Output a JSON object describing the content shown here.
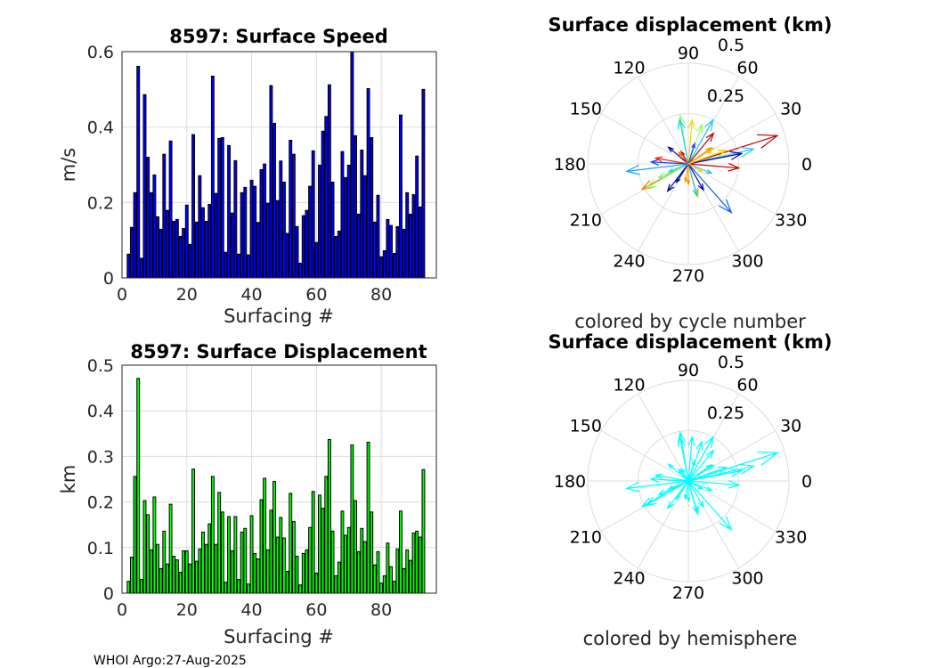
{
  "chart_data": [
    {
      "type": "bar",
      "title": "8597: Surface Speed",
      "xlabel": "Surfacing #",
      "ylabel": "m/s",
      "xlim": [
        0,
        97
      ],
      "ylim": [
        0,
        0.6
      ],
      "xticks": [
        "0",
        "20",
        "40",
        "60",
        "80"
      ],
      "yticks": [
        "0",
        "0.2",
        "0.4",
        "0.6"
      ],
      "bar_color": "#0000ff",
      "x_start": 2,
      "values": [
        0.063,
        0.134,
        0.226,
        0.561,
        0.052,
        0.486,
        0.32,
        0.226,
        0.273,
        0.162,
        0.129,
        0.328,
        0.179,
        0.363,
        0.15,
        0.155,
        0.11,
        0.131,
        0.193,
        0.089,
        0.38,
        0.148,
        0.271,
        0.186,
        0.15,
        0.195,
        0.535,
        0.224,
        0.37,
        0.372,
        0.068,
        0.351,
        0.172,
        0.311,
        0.063,
        0.226,
        0.24,
        0.061,
        0.259,
        0.243,
        0.147,
        0.287,
        0.302,
        0.198,
        0.51,
        0.41,
        0.205,
        0.31,
        0.254,
        0.118,
        0.365,
        0.328,
        0.136,
        0.039,
        0.165,
        0.179,
        0.243,
        0.337,
        0.094,
        0.299,
        0.389,
        0.428,
        0.512,
        0.254,
        0.11,
        0.124,
        0.335,
        0.266,
        0.299,
        0.603,
        0.377,
        0.169,
        0.339,
        0.271,
        0.502,
        0.372,
        0.148,
        0.219,
        0.056,
        0.072,
        0.155,
        0.139,
        0.065,
        0.136,
        0.432,
        0.129,
        0.226,
        0.169,
        0.221,
        0.323,
        0.188,
        0.5
      ]
    },
    {
      "type": "bar",
      "title": "8597: Surface Displacement",
      "xlabel": "Surfacing #",
      "ylabel": "km",
      "xlim": [
        0,
        97
      ],
      "ylim": [
        0,
        0.5
      ],
      "xticks": [
        "0",
        "20",
        "40",
        "60",
        "80"
      ],
      "yticks": [
        "0",
        "0.1",
        "0.2",
        "0.3",
        "0.4",
        "0.5"
      ],
      "bar_color": "#00ff00",
      "x_start": 2,
      "values": [
        0.026,
        0.079,
        0.256,
        0.471,
        0.03,
        0.203,
        0.172,
        0.095,
        0.211,
        0.107,
        0.054,
        0.136,
        0.064,
        0.195,
        0.081,
        0.073,
        0.046,
        0.093,
        0.093,
        0.064,
        0.272,
        0.07,
        0.097,
        0.134,
        0.107,
        0.152,
        0.256,
        0.107,
        0.221,
        0.178,
        0.024,
        0.168,
        0.093,
        0.168,
        0.03,
        0.134,
        0.142,
        0.02,
        0.17,
        0.087,
        0.075,
        0.205,
        0.252,
        0.095,
        0.182,
        0.245,
        0.123,
        0.166,
        0.121,
        0.048,
        0.219,
        0.157,
        0.081,
        0.018,
        0.087,
        0.095,
        0.144,
        0.223,
        0.044,
        0.215,
        0.186,
        0.256,
        0.337,
        0.136,
        0.038,
        0.068,
        0.18,
        0.127,
        0.144,
        0.325,
        0.203,
        0.091,
        0.142,
        0.113,
        0.331,
        0.178,
        0.062,
        0.091,
        0.022,
        0.038,
        0.11,
        0.058,
        0.026,
        0.097,
        0.18,
        0.054,
        0.095,
        0.072,
        0.132,
        0.136,
        0.123,
        0.271
      ]
    },
    {
      "type": "polar",
      "title": "Surface displacement (km)",
      "caption": "colored by cycle number",
      "rticks": [
        "0.25",
        "0.5"
      ],
      "angle_ticks": [
        "0",
        "30",
        "60",
        "90",
        "120",
        "150",
        "180",
        "210",
        "240",
        "270",
        "300",
        "330"
      ],
      "rlim": [
        0,
        0.5
      ],
      "arrows": [
        {
          "r": 0.464,
          "deg": 17.6,
          "color": "#c00000"
        },
        {
          "r": 0.252,
          "deg": -4.7,
          "color": "#c00000"
        },
        {
          "r": 0.333,
          "deg": 12.8,
          "color": "#20d0f0"
        },
        {
          "r": 0.27,
          "deg": 11,
          "color": "#0000a0"
        },
        {
          "r": 0.323,
          "deg": -48.5,
          "color": "#1060ff"
        },
        {
          "r": 0.309,
          "deg": 186.9,
          "color": "#20a0ff"
        },
        {
          "r": 0.185,
          "deg": 177,
          "color": "#1040ff"
        },
        {
          "r": 0.261,
          "deg": 208.7,
          "color": "#ff7000"
        },
        {
          "r": 0.24,
          "deg": 210,
          "color": "#90ff70"
        },
        {
          "r": 0.17,
          "deg": 232.7,
          "color": "#0000a0"
        },
        {
          "r": 0.129,
          "deg": 140,
          "color": "#0000a0"
        },
        {
          "r": 0.25,
          "deg": 60.7,
          "color": "#20c8f0"
        },
        {
          "r": 0.197,
          "deg": 50.5,
          "color": "#c00000"
        },
        {
          "r": 0.244,
          "deg": 99.7,
          "color": "#90ff70"
        },
        {
          "r": 0.223,
          "deg": 101,
          "color": "#20d0f0"
        },
        {
          "r": 0.219,
          "deg": 85,
          "color": "#ffd000"
        },
        {
          "r": 0.207,
          "deg": 71,
          "color": "#90ff70"
        },
        {
          "r": 0.172,
          "deg": -74,
          "color": "#ffd000"
        },
        {
          "r": 0.163,
          "deg": -75,
          "color": "#20c0f0"
        },
        {
          "r": 0.1,
          "deg": -90,
          "color": "#ff9000"
        },
        {
          "r": 0.165,
          "deg": 170,
          "color": "#ff2000"
        },
        {
          "r": 0.124,
          "deg": -22,
          "color": "#20c0f0"
        },
        {
          "r": 0.148,
          "deg": 32,
          "color": "#ffd000"
        },
        {
          "r": 0.14,
          "deg": 35,
          "color": "#ff9000"
        },
        {
          "r": 0.105,
          "deg": 73,
          "color": "#1040ff"
        },
        {
          "r": 0.163,
          "deg": 205,
          "color": "#60ff90"
        },
        {
          "r": 0.104,
          "deg": 202,
          "color": "#20d0f0"
        },
        {
          "r": 0.109,
          "deg": 237,
          "color": "#0000a0"
        },
        {
          "r": 0.08,
          "deg": -30,
          "color": "#ffd000"
        },
        {
          "r": 0.07,
          "deg": 120,
          "color": "#c00000"
        },
        {
          "r": 0.075,
          "deg": 130,
          "color": "#ff7000"
        },
        {
          "r": 0.2,
          "deg": 20,
          "color": "#ffd000"
        },
        {
          "r": 0.15,
          "deg": -60,
          "color": "#0000c0"
        },
        {
          "r": 0.09,
          "deg": -100,
          "color": "#ffa000"
        }
      ]
    },
    {
      "type": "polar",
      "title": "Surface displacement (km)",
      "caption": "colored by hemisphere",
      "rticks": [
        "0.25",
        "0.5"
      ],
      "angle_ticks": [
        "0",
        "30",
        "60",
        "90",
        "120",
        "150",
        "180",
        "210",
        "240",
        "270",
        "300",
        "330"
      ],
      "rlim": [
        0,
        0.5
      ],
      "arrow_color": "#00ffff"
    }
  ],
  "footer": "WHOI Argo:27-Aug-2025"
}
